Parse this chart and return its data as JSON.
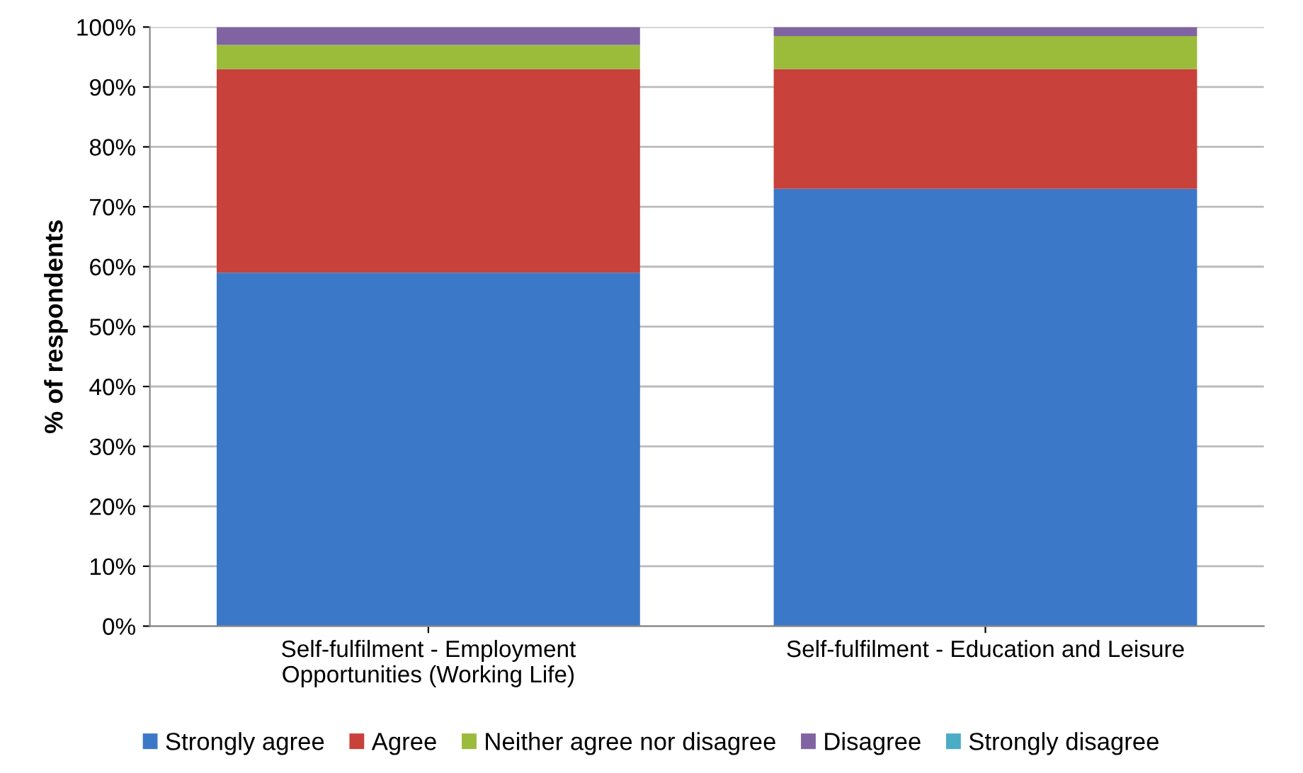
{
  "chart_data": {
    "type": "bar",
    "stacked": true,
    "ylabel": "% of respondents",
    "categories": [
      "Self-fulfilment - Employment\nOpportunities (Working Life)",
      "Self-fulfilment - Education and Leisure"
    ],
    "series": [
      {
        "name": "Strongly agree",
        "color": "#3c78c8",
        "values": [
          59,
          73
        ]
      },
      {
        "name": "Agree",
        "color": "#c8413a",
        "values": [
          34,
          20
        ]
      },
      {
        "name": "Neither agree nor disagree",
        "color": "#9bbb3b",
        "values": [
          4,
          5.5
        ]
      },
      {
        "name": "Disagree",
        "color": "#8064a2",
        "values": [
          3,
          1.5
        ]
      },
      {
        "name": "Strongly disagree",
        "color": "#4bacc6",
        "values": [
          0,
          0
        ]
      }
    ],
    "ylim": [
      0,
      100
    ],
    "yticks": [
      {
        "value": 0,
        "label": "0%"
      },
      {
        "value": 10,
        "label": "10%"
      },
      {
        "value": 20,
        "label": "20%"
      },
      {
        "value": 30,
        "label": "30%"
      },
      {
        "value": 40,
        "label": "40%"
      },
      {
        "value": 50,
        "label": "50%"
      },
      {
        "value": 60,
        "label": "60%"
      },
      {
        "value": 70,
        "label": "70%"
      },
      {
        "value": 80,
        "label": "80%"
      },
      {
        "value": 90,
        "label": "90%"
      },
      {
        "value": 100,
        "label": "100%"
      }
    ],
    "grid": "y",
    "legend": "bottom"
  }
}
